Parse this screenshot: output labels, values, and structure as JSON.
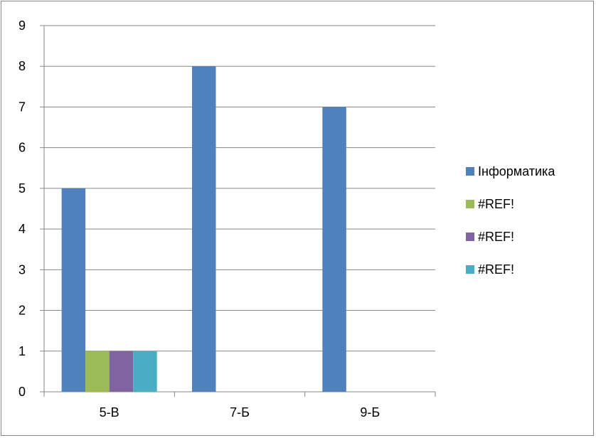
{
  "chart_data": {
    "type": "bar",
    "title": "",
    "xlabel": "",
    "ylabel": "",
    "categories": [
      "5-В",
      "7-Б",
      "9-Б"
    ],
    "series": [
      {
        "name": "Інформатика",
        "color": "#4f81bd",
        "values": [
          5,
          8,
          7
        ]
      },
      {
        "name": "#REF!",
        "color": "#9bbb59",
        "values": [
          1,
          null,
          null
        ]
      },
      {
        "name": "#REF!",
        "color": "#8064a2",
        "values": [
          1,
          null,
          null
        ]
      },
      {
        "name": "#REF!",
        "color": "#4bacc6",
        "values": [
          1,
          null,
          null
        ]
      }
    ],
    "ylim": [
      0,
      9
    ],
    "yticks": [
      0,
      1,
      2,
      3,
      4,
      5,
      6,
      7,
      8,
      9
    ],
    "grid": true,
    "legend_position": "right"
  }
}
